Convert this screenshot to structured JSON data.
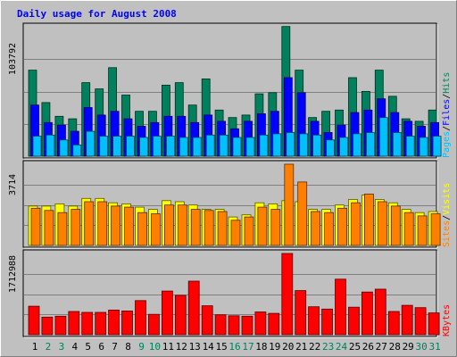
{
  "chart_data": {
    "type": "bar",
    "title": "Daily usage for August 2008",
    "categories": [
      "1",
      "2",
      "3",
      "4",
      "5",
      "6",
      "7",
      "8",
      "9",
      "10",
      "11",
      "12",
      "13",
      "14",
      "15",
      "16",
      "17",
      "18",
      "19",
      "20",
      "21",
      "22",
      "23",
      "24",
      "25",
      "26",
      "27",
      "28",
      "29",
      "30",
      "31"
    ],
    "weekend_days": [
      "2",
      "3",
      "9",
      "10",
      "16",
      "17",
      "23",
      "24",
      "30",
      "31"
    ],
    "colors": {
      "background": "#c0c0c0",
      "hits": "#00805c",
      "files": "#0000ff",
      "pages": "#00c0ff",
      "visits": "#ffff00",
      "sites": "#ff8000",
      "kbytes": "#ff0000",
      "title": "#0000ff",
      "weekday_label": "#000000",
      "weekend_label": "#00805c"
    },
    "panels": [
      {
        "id": "top",
        "max_label": "103792",
        "ylim": [
          0,
          103792
        ],
        "legend": [
          {
            "text": "Hits",
            "color": "#00805c"
          },
          {
            "text": "Files",
            "color": "#0000ff"
          },
          {
            "text": "Pages",
            "color": "#00c0ff"
          }
        ],
        "series": [
          {
            "name": "Hits",
            "color": "#00805c",
            "values": [
              69000,
              43000,
              32000,
              30000,
              59000,
              54000,
              71000,
              49000,
              36000,
              36000,
              57000,
              59000,
              41000,
              62000,
              37000,
              31000,
              33000,
              50000,
              51000,
              104000,
              69000,
              31000,
              36000,
              37000,
              63000,
              52000,
              69000,
              48000,
              30000,
              28000,
              37000
            ]
          },
          {
            "name": "Files",
            "color": "#0000ff",
            "values": [
              41000,
              27000,
              25000,
              20000,
              39000,
              33000,
              36000,
              30000,
              24000,
              27000,
              32000,
              32000,
              27000,
              33000,
              28000,
              22000,
              28000,
              34000,
              36000,
              63000,
              51000,
              28000,
              19000,
              25000,
              35000,
              37000,
              46000,
              35000,
              28000,
              24000,
              27000
            ]
          },
          {
            "name": "Pages",
            "color": "#00c0ff",
            "values": [
              16000,
              17000,
              13000,
              9000,
              20000,
              16000,
              16000,
              16000,
              15000,
              16000,
              16000,
              15000,
              15000,
              17000,
              17000,
              15000,
              15000,
              17000,
              18000,
              19000,
              18000,
              17000,
              13000,
              15000,
              18000,
              19000,
              31000,
              19000,
              16000,
              15000,
              16000
            ]
          }
        ]
      },
      {
        "id": "middle",
        "max_label": "3714",
        "ylim": [
          0,
          3714
        ],
        "legend": [
          {
            "text": "Visits",
            "color": "#ffff00"
          },
          {
            "text": "Sites",
            "color": "#ff8000"
          }
        ],
        "series": [
          {
            "name": "Visits",
            "color": "#ffff00",
            "values": [
              1800,
              1800,
              1900,
              1800,
              2150,
              2150,
              1950,
              1900,
              1750,
              1650,
              2050,
              2000,
              1850,
              1650,
              1650,
              1300,
              1400,
              1950,
              1900,
              2050,
              2000,
              1650,
              1650,
              1850,
              2100,
              2300,
              2100,
              1950,
              1650,
              1500,
              1550
            ]
          },
          {
            "name": "Sites",
            "color": "#ff8000",
            "values": [
              1700,
              1600,
              1500,
              1650,
              2000,
              2000,
              1800,
              1750,
              1500,
              1450,
              1850,
              1850,
              1650,
              1600,
              1550,
              1150,
              1300,
              1750,
              1650,
              3714,
              2900,
              1550,
              1500,
              1700,
              1950,
              2350,
              2000,
              1800,
              1500,
              1350,
              1450
            ]
          }
        ]
      },
      {
        "id": "bottom",
        "max_label": "1712988",
        "ylim": [
          0,
          1712988
        ],
        "legend": [
          {
            "text": "KBytes",
            "color": "#ff0000"
          }
        ],
        "series": [
          {
            "name": "KBytes",
            "color": "#ff0000",
            "values": [
              600000,
              370000,
              390000,
              490000,
              470000,
              470000,
              520000,
              500000,
              720000,
              430000,
              920000,
              830000,
              1130000,
              610000,
              420000,
              400000,
              390000,
              480000,
              450000,
              1712988,
              930000,
              590000,
              540000,
              1170000,
              580000,
              900000,
              960000,
              490000,
              620000,
              570000,
              460000
            ]
          }
        ]
      }
    ]
  }
}
